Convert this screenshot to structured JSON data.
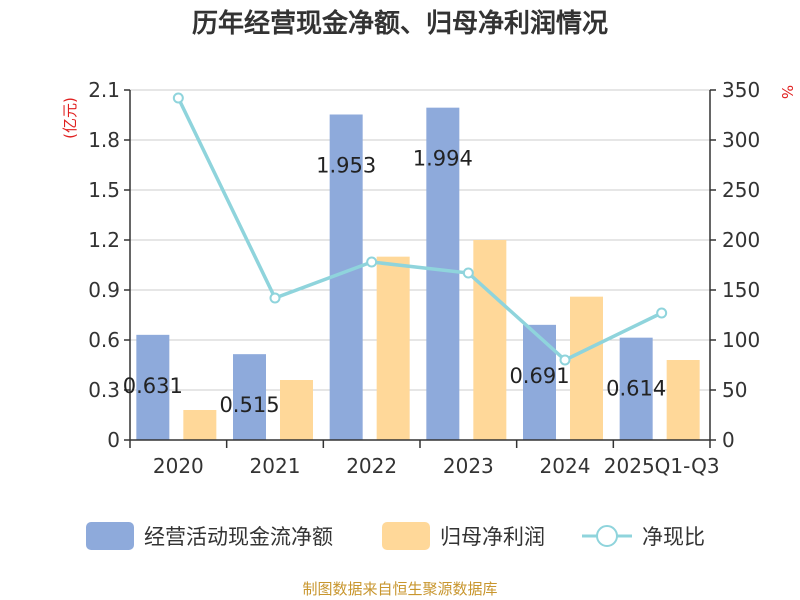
{
  "chart_data": {
    "type": "bar",
    "title": "历年经营现金净额、归母净利润情况",
    "categories": [
      "2020",
      "2021",
      "2022",
      "2023",
      "2024",
      "2025Q1-Q3"
    ],
    "left_axis": {
      "unit": "(亿元)",
      "ylim": [
        0,
        2.1
      ],
      "ticks": [
        "0",
        "0.3",
        "0.6",
        "0.9",
        "1.2",
        "1.5",
        "1.8",
        "2.1"
      ]
    },
    "right_axis": {
      "unit": "%",
      "ylim": [
        0,
        350
      ],
      "ticks": [
        "0",
        "50",
        "100",
        "150",
        "200",
        "250",
        "300",
        "350"
      ]
    },
    "series": [
      {
        "name": "经营活动现金流净额",
        "type": "bar",
        "axis": "left",
        "color": "#8eaadb",
        "values": [
          0.631,
          0.515,
          1.953,
          1.994,
          0.691,
          0.614
        ],
        "labels": [
          "0.631",
          "0.515",
          "1.953",
          "1.994",
          "0.691",
          "0.614"
        ]
      },
      {
        "name": "归母净利润",
        "type": "bar",
        "axis": "left",
        "color": "#ffd899",
        "values": [
          0.18,
          0.36,
          1.1,
          1.2,
          0.86,
          0.48
        ]
      },
      {
        "name": "净现比",
        "type": "line",
        "axis": "right",
        "color": "#8fd4dc",
        "values": [
          342,
          142,
          178,
          167,
          80,
          127
        ]
      }
    ],
    "grid": true,
    "legend_position": "bottom",
    "source": "制图数据来自恒生聚源数据库"
  }
}
